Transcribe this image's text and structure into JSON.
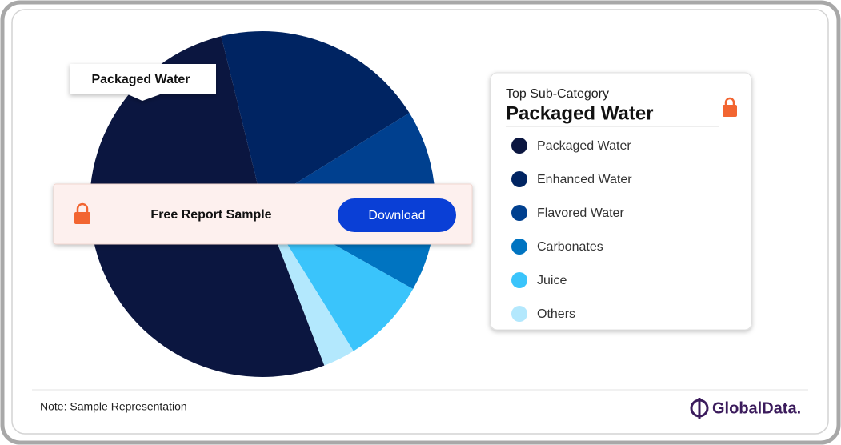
{
  "chart_data": {
    "type": "pie",
    "callout": "Packaged Water",
    "banner_text": "Free Report Sample",
    "button": "Download",
    "legend_title": "Top Sub-Category",
    "legend_subtitle": "Packaged Water",
    "note": "Note: Sample Representation",
    "brand": "GlobalData.",
    "categories": [
      "Packaged Water",
      "Enhanced Water",
      "Flavored Water",
      "Carbonates",
      "Juice",
      "Others"
    ],
    "values": [
      52,
      20,
      10,
      7,
      8,
      3
    ],
    "colors": [
      "#0b1640",
      "#002462",
      "#00408f",
      "#0074c1",
      "#3ac4fb",
      "#b3e8fd"
    ]
  }
}
